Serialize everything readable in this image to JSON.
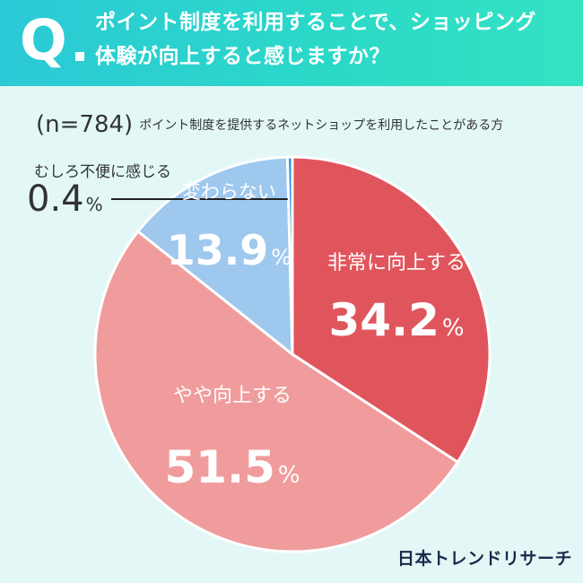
{
  "question": {
    "mark": "Q",
    "line1": "ポイント制度を利用することで、ショッピング",
    "line2": "体験が向上すると感じますか？"
  },
  "sample": {
    "n_label": "(n=784)",
    "description": "ポイント制度を提供するネットショップを利用したことがある方"
  },
  "chart_data": {
    "type": "pie",
    "start": "12 o'clock, clockwise",
    "slices": [
      {
        "label": "非常に向上する",
        "value": 34.2,
        "display": "34.2",
        "color": "#e0555c"
      },
      {
        "label": "やや向上する",
        "value": 51.5,
        "display": "51.5",
        "color": "#f09c9c"
      },
      {
        "label": "変わらない",
        "value": 13.9,
        "display": "13.9",
        "color": "#9ec8ee"
      },
      {
        "label": "むしろ不便に感じる",
        "value": 0.4,
        "display": "0.4",
        "color": "#2e8fe0"
      }
    ],
    "unit": "%"
  },
  "brand": {
    "logo_text": "日本トレンドリサーチ"
  },
  "colors": {
    "background": "#e3f8f6",
    "header_start": "#2bc9d6",
    "header_end": "#33e3c2",
    "separator": "#ffffff"
  }
}
